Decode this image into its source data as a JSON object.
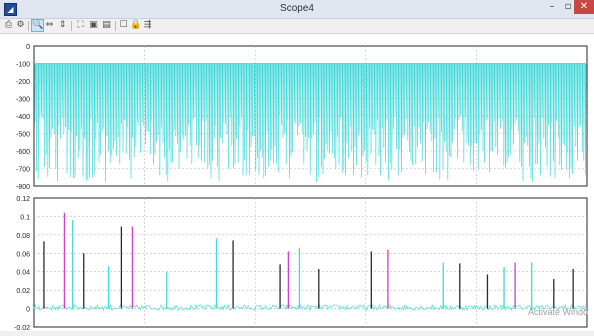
{
  "window": {
    "title": "Scope4",
    "app_icon": "matlab-icon",
    "controls": {
      "minimize": "–",
      "maximize": "▫",
      "close": "✕"
    }
  },
  "toolbar": {
    "buttons": [
      {
        "name": "print-icon",
        "glyph": "⎙"
      },
      {
        "name": "parameters-icon",
        "glyph": "⚙"
      },
      {
        "name": "zoom-in-icon",
        "glyph": "🔍"
      },
      {
        "name": "zoom-x-icon",
        "glyph": "⇔"
      },
      {
        "name": "zoom-y-icon",
        "glyph": "⇕"
      },
      {
        "name": "autoscale-icon",
        "glyph": "⛶"
      },
      {
        "name": "save-axes-icon",
        "glyph": "▣"
      },
      {
        "name": "restore-axes-icon",
        "glyph": "▤"
      },
      {
        "name": "floating-scope-icon",
        "glyph": "☐"
      },
      {
        "name": "lock-axes-icon",
        "glyph": "🔒"
      },
      {
        "name": "signal-selection-icon",
        "glyph": "⇶"
      }
    ]
  },
  "chart_data": [
    {
      "type": "line",
      "ylim": [
        -800,
        0
      ],
      "yticks": [
        "0",
        "-100",
        "-200",
        "-300",
        "-400",
        "-500",
        "-600",
        "-700",
        "-800"
      ],
      "grid": true,
      "series_color": "#40d8d8",
      "baseline": -100,
      "note": "dense repeating negative spikes from about -100 down to between -400 and -780"
    },
    {
      "type": "line",
      "ylim": [
        0,
        0.12
      ],
      "yticks": [
        "0.12",
        "0.1",
        "0.08",
        "0.06",
        "0.04",
        "0.02",
        "0",
        "-0.02"
      ],
      "grid": true,
      "series_colors": [
        "#40d8d8",
        "#2b2b2b",
        "#d040c8"
      ],
      "spikes": [
        {
          "x": 0.018,
          "y": 0.073,
          "color": "#2b2b2b"
        },
        {
          "x": 0.055,
          "y": 0.104,
          "color": "#d040c8"
        },
        {
          "x": 0.07,
          "y": 0.096,
          "color": "#40d8d8"
        },
        {
          "x": 0.09,
          "y": 0.06,
          "color": "#2b2b2b"
        },
        {
          "x": 0.135,
          "y": 0.046,
          "color": "#40d8d8"
        },
        {
          "x": 0.158,
          "y": 0.089,
          "color": "#2b2b2b"
        },
        {
          "x": 0.178,
          "y": 0.089,
          "color": "#d040c8"
        },
        {
          "x": 0.24,
          "y": 0.04,
          "color": "#40d8d8"
        },
        {
          "x": 0.33,
          "y": 0.076,
          "color": "#40d8d8"
        },
        {
          "x": 0.36,
          "y": 0.074,
          "color": "#2b2b2b"
        },
        {
          "x": 0.445,
          "y": 0.048,
          "color": "#2b2b2b"
        },
        {
          "x": 0.46,
          "y": 0.062,
          "color": "#d040c8"
        },
        {
          "x": 0.48,
          "y": 0.066,
          "color": "#40d8d8"
        },
        {
          "x": 0.515,
          "y": 0.043,
          "color": "#2b2b2b"
        },
        {
          "x": 0.61,
          "y": 0.062,
          "color": "#2b2b2b"
        },
        {
          "x": 0.64,
          "y": 0.064,
          "color": "#d040c8"
        },
        {
          "x": 0.74,
          "y": 0.05,
          "color": "#40d8d8"
        },
        {
          "x": 0.77,
          "y": 0.049,
          "color": "#2b2b2b"
        },
        {
          "x": 0.82,
          "y": 0.037,
          "color": "#2b2b2b"
        },
        {
          "x": 0.85,
          "y": 0.045,
          "color": "#40d8d8"
        },
        {
          "x": 0.87,
          "y": 0.05,
          "color": "#d040c8"
        },
        {
          "x": 0.9,
          "y": 0.05,
          "color": "#40d8d8"
        },
        {
          "x": 0.94,
          "y": 0.032,
          "color": "#2b2b2b"
        },
        {
          "x": 0.975,
          "y": 0.043,
          "color": "#2b2b2b"
        }
      ]
    }
  ],
  "watermark": "Activate Windo"
}
